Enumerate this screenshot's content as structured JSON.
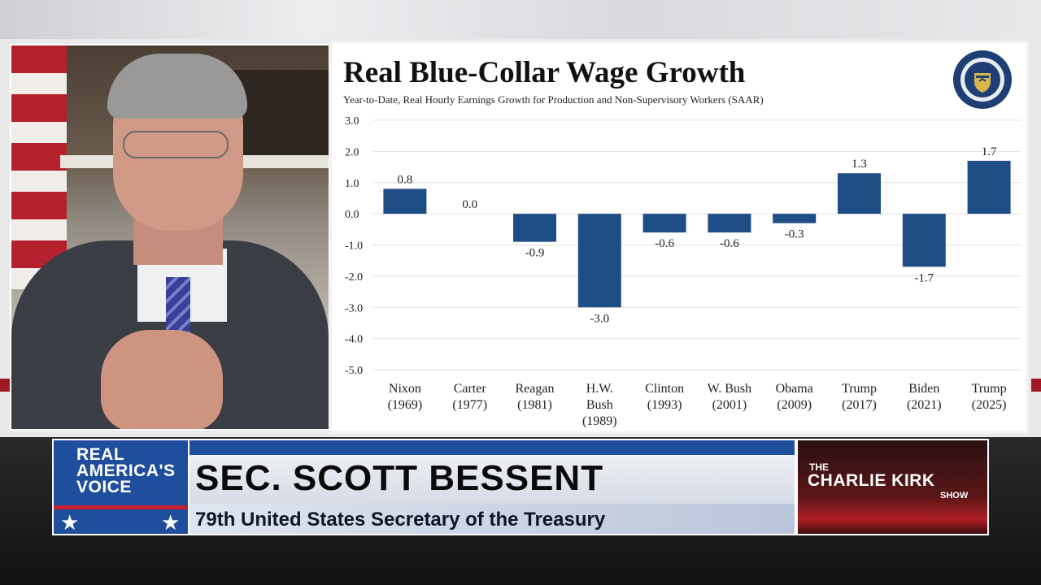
{
  "chart_data": {
    "type": "bar",
    "title": "Real Blue-Collar Wage Growth",
    "subtitle": "Year-to-Date, Real Hourly Earnings Growth for Production and Non-Supervisory Workers (SAAR)",
    "categories": [
      [
        "Nixon",
        "(1969)"
      ],
      [
        "Carter",
        "(1977)"
      ],
      [
        "Reagan",
        "(1981)"
      ],
      [
        "H.W.",
        "Bush",
        "(1989)"
      ],
      [
        "Clinton",
        "(1993)"
      ],
      [
        "W. Bush",
        "(2001)"
      ],
      [
        "Obama",
        "(2009)"
      ],
      [
        "Trump",
        "(2017)"
      ],
      [
        "Biden",
        "(2021)"
      ],
      [
        "Trump",
        "(2025)"
      ]
    ],
    "values": [
      0.8,
      0.0,
      -0.9,
      -3.0,
      -0.6,
      -0.6,
      -0.3,
      1.3,
      -1.7,
      1.7
    ],
    "data_labels": [
      "0.8",
      "0.0",
      "-0.9",
      "-3.0",
      "-0.6",
      "-0.6",
      "-0.3",
      "1.3",
      "-1.7",
      "1.7"
    ],
    "y_ticks": [
      "3.0",
      "2.0",
      "1.0",
      "0.0",
      "-1.0",
      "-2.0",
      "-3.0",
      "-4.0",
      "-5.0"
    ],
    "ylim": [
      -5,
      3
    ],
    "grid": true,
    "bar_color": "#1f4e86",
    "xlabel": "",
    "ylabel": ""
  },
  "seal": {
    "icon": "treasury-seal-icon",
    "text": "THE DEPARTMENT OF THE TREASURY",
    "year": "1789"
  },
  "lower_third": {
    "brand": [
      "REAL",
      "AMERICA'S",
      "VOICE"
    ],
    "guest_name": "SEC. SCOTT BESSENT",
    "guest_title": "79th United States Secretary of the Treasury",
    "show_the": "THE",
    "show_name": "CHARLIE KIRK",
    "show_suffix": "SHOW"
  },
  "colors": {
    "network_blue": "#1f4e9c",
    "network_red": "#c8202f"
  }
}
